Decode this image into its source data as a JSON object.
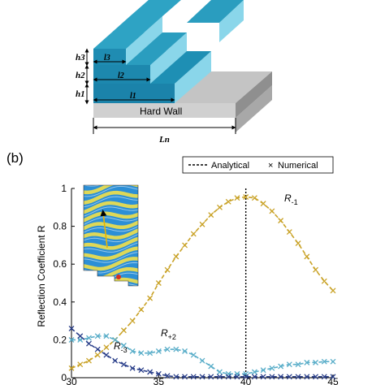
{
  "panel_a": {
    "labels": {
      "h3": "h3",
      "h2": "h2",
      "h1": "h1",
      "l3": "l3",
      "l2": "l2",
      "l1": "l1",
      "hard_wall": "Hard Wall",
      "ln": "Ln"
    },
    "colors": {
      "step_top": "#2a9dbf",
      "step_front": "#1a7ea6",
      "step_side": "#7fd0e6",
      "wall_top": "#cfcfcf",
      "wall_front": "#bdbdbd",
      "wall_side": "#9e9e9e"
    }
  },
  "panel_b": {
    "panel_label": "(b)",
    "inset_icon": "field-map-inset"
  },
  "chart_data": {
    "type": "line",
    "xlabel": "",
    "ylabel": "Reflection Coefficient R",
    "xlim": [
      30,
      45
    ],
    "ylim": [
      0,
      1
    ],
    "x_ticks": [
      "30",
      "35",
      "40",
      "45"
    ],
    "y_ticks": [
      "0",
      "0.2",
      "0.4",
      "0.6",
      "0.8",
      "1"
    ],
    "grid": false,
    "legend": {
      "position": "top-right",
      "analytical": "Analytical",
      "numerical": "Numerical"
    },
    "analytical_x": 40,
    "series": [
      {
        "name": "R-1",
        "label_main": "R",
        "label_sub": "-1",
        "color": "#c9a227",
        "x": [
          30,
          30.5,
          31,
          31.5,
          32,
          32.5,
          33,
          33.5,
          34,
          34.5,
          35,
          35.5,
          36,
          36.5,
          37,
          37.5,
          38,
          38.5,
          39,
          39.5,
          40,
          40.5,
          41,
          41.5,
          42,
          42.5,
          43,
          43.5,
          44,
          44.5,
          45
        ],
        "values": [
          0.05,
          0.07,
          0.09,
          0.12,
          0.16,
          0.2,
          0.25,
          0.3,
          0.36,
          0.42,
          0.5,
          0.57,
          0.64,
          0.7,
          0.76,
          0.81,
          0.86,
          0.9,
          0.93,
          0.95,
          0.955,
          0.95,
          0.92,
          0.88,
          0.83,
          0.77,
          0.71,
          0.64,
          0.57,
          0.51,
          0.46
        ]
      },
      {
        "name": "R+2",
        "label_main": "R",
        "label_sub": "+2",
        "color": "#5aaec9",
        "x": [
          30,
          30.5,
          31,
          31.5,
          32,
          32.5,
          33,
          33.5,
          34,
          34.5,
          35,
          35.5,
          36,
          36.5,
          37,
          37.5,
          38,
          38.5,
          39,
          39.5,
          40,
          40.5,
          41,
          41.5,
          42,
          42.5,
          43,
          43.5,
          44,
          44.5,
          45
        ],
        "values": [
          0.2,
          0.2,
          0.21,
          0.22,
          0.22,
          0.2,
          0.17,
          0.14,
          0.13,
          0.13,
          0.14,
          0.15,
          0.15,
          0.14,
          0.12,
          0.09,
          0.06,
          0.03,
          0.02,
          0.02,
          0.02,
          0.03,
          0.04,
          0.05,
          0.06,
          0.07,
          0.07,
          0.08,
          0.08,
          0.085,
          0.085
        ]
      },
      {
        "name": "R-3",
        "label_main": "R",
        "label_sub": "-3",
        "color": "#2a3f8a",
        "x": [
          30,
          30.5,
          31,
          31.5,
          32,
          32.5,
          33,
          33.5,
          34,
          34.5,
          35,
          35.5,
          36,
          36.5,
          37,
          37.5,
          38,
          38.5,
          39,
          39.5,
          40,
          40.5,
          41,
          41.5,
          42,
          42.5,
          43,
          43.5,
          44,
          44.5,
          45
        ],
        "values": [
          0.26,
          0.22,
          0.18,
          0.15,
          0.12,
          0.09,
          0.07,
          0.05,
          0.04,
          0.03,
          0.02,
          0.01,
          0.005,
          0.005,
          0.005,
          0.005,
          0.005,
          0.005,
          0.005,
          0.005,
          0.005,
          0.005,
          0.005,
          0.005,
          0.005,
          0.005,
          0.005,
          0.005,
          0.005,
          0.005,
          0.005
        ]
      }
    ]
  }
}
